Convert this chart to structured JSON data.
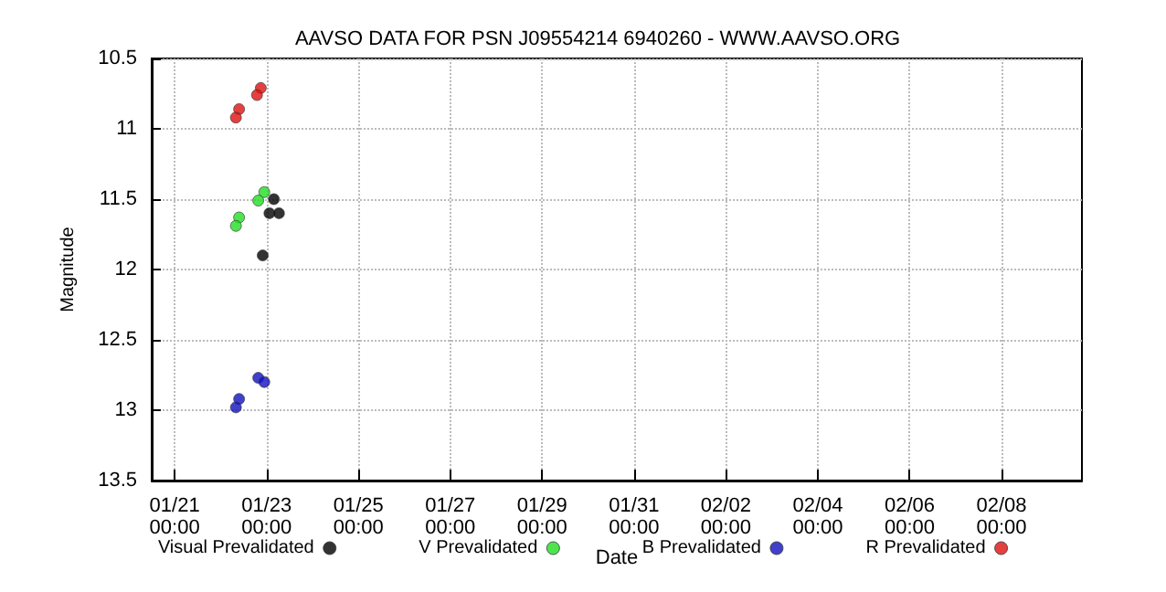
{
  "chart_data": {
    "type": "scatter",
    "title": "AAVSO DATA FOR PSN J09554214 6940260 - WWW.AAVSO.ORG",
    "xlabel": "Date",
    "ylabel": "Magnitude",
    "series": [
      {
        "name": "Visual Prevalidated",
        "color": "#000000",
        "x": [
          "--01-23T03:50",
          "--01-23T01:30",
          "--01-23T06:30",
          "--01-22T22:00"
        ],
        "values": [
          11.5,
          11.6,
          11.6,
          11.9
        ]
      },
      {
        "name": "V Prevalidated",
        "color": "#22dd22",
        "x": [
          "--01-22T22:50",
          "--01-22T19:40",
          "--01-22T09:40",
          "--01-22T08:00"
        ],
        "values": [
          11.45,
          11.51,
          11.63,
          11.69
        ]
      },
      {
        "name": "B Prevalidated",
        "color": "#1010c0",
        "x": [
          "--01-22T19:40",
          "--01-22T22:50",
          "--01-22T09:40",
          "--01-22T08:00"
        ],
        "values": [
          12.77,
          12.8,
          12.92,
          12.98
        ]
      },
      {
        "name": "R Prevalidated",
        "color": "#dd1010",
        "x": [
          "--01-22T21:00",
          "--01-22T19:00",
          "--01-22T09:40",
          "--01-22T08:00"
        ],
        "values": [
          10.71,
          10.76,
          10.86,
          10.92
        ]
      }
    ],
    "xlim": [
      "--01-20T12:00",
      "--02-09T18:00"
    ],
    "xticks": [
      {
        "value": "--01-21",
        "label": "01/21\n00:00"
      },
      {
        "value": "--01-23",
        "label": "01/23\n00:00"
      },
      {
        "value": "--01-25",
        "label": "01/25\n00:00"
      },
      {
        "value": "--01-27",
        "label": "01/27\n00:00"
      },
      {
        "value": "--01-29",
        "label": "01/29\n00:00"
      },
      {
        "value": "--01-31",
        "label": "01/31\n00:00"
      },
      {
        "value": "--02-02",
        "label": "02/02\n00:00"
      },
      {
        "value": "--02-04",
        "label": "02/04\n00:00"
      },
      {
        "value": "--02-06",
        "label": "02/06\n00:00"
      },
      {
        "value": "--02-08",
        "label": "02/08\n00:00"
      }
    ],
    "ylim": [
      13.5,
      10.5
    ],
    "yticks": [
      10.5,
      11,
      11.5,
      12,
      12.5,
      13,
      13.5
    ],
    "grid": true,
    "legend": "bottom",
    "marker": "circle"
  }
}
